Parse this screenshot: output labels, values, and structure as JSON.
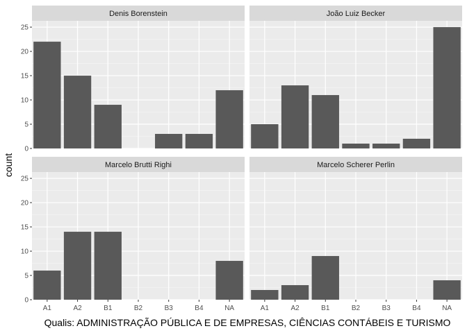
{
  "chart_data": {
    "type": "bar",
    "xlabel": "Qualis: ADMINISTRAÇÃO PÚBLICA E DE EMPRESAS, CIÊNCIAS CONTÁBEIS E TURISMO",
    "ylabel": "count",
    "categories": [
      "A1",
      "A2",
      "B1",
      "B2",
      "B3",
      "B4",
      "NA"
    ],
    "yticks": [
      0,
      5,
      10,
      15,
      20,
      25
    ],
    "ylim": [
      0,
      26.3
    ],
    "grid": true,
    "facet_layout": "2x2",
    "panels": [
      {
        "name": "Denis Borenstein",
        "values": [
          22,
          15,
          9,
          0,
          3,
          3,
          12
        ]
      },
      {
        "name": "João Luiz Becker",
        "values": [
          5,
          13,
          11,
          1,
          1,
          2,
          25
        ]
      },
      {
        "name": "Marcelo Brutti Righi",
        "values": [
          6,
          14,
          14,
          0,
          0,
          0,
          8
        ]
      },
      {
        "name": "Marcelo Scherer Perlin",
        "values": [
          2,
          3,
          9,
          0,
          0,
          0,
          4
        ]
      }
    ]
  },
  "colors": {
    "panel_background": "#ebebeb",
    "strip_background": "#d9d9d9",
    "grid_major": "#ffffff",
    "bar_fill": "#595959",
    "tick_text": "#4d4d4d",
    "strip_text": "#1a1a1a"
  }
}
